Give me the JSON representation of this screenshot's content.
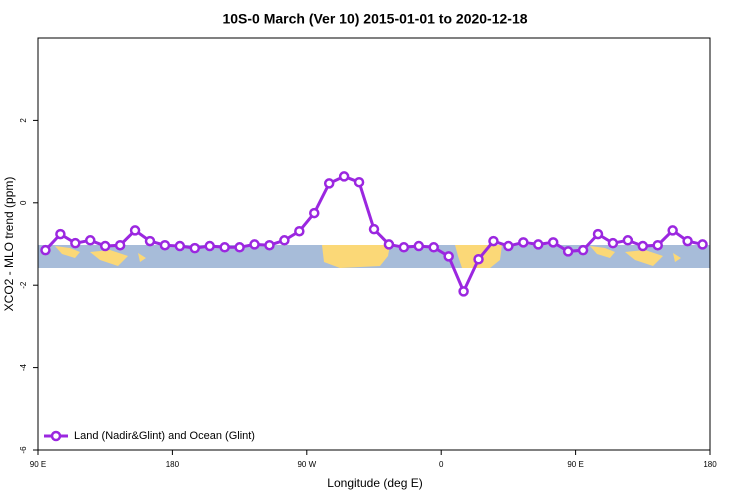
{
  "chart_data": {
    "type": "line",
    "title": "10S-0 March (Ver 10)   2015-01-01 to 2020-12-18",
    "x_label": "Longitude (deg E)",
    "y_label": "XCO2 - MLO trend (ppm)",
    "xlim": [
      90,
      540
    ],
    "ylim": [
      -6,
      4
    ],
    "xticks": [
      {
        "value": 90,
        "label": "90 E"
      },
      180,
      {
        "value": 270,
        "label": "90 W"
      },
      {
        "value": 360,
        "label": "0"
      },
      {
        "value": 450,
        "label": "90 E"
      },
      {
        "value": 540,
        "label": "180"
      }
    ],
    "yticks": [
      -6,
      -4,
      -2,
      0,
      2
    ],
    "legend": "bottom-left",
    "series": [
      {
        "name": "Land (Nadir&Glint) and Ocean (Glint)",
        "color": "#9b27e0",
        "x": [
          95,
          105,
          115,
          125,
          135,
          145,
          155,
          165,
          175,
          185,
          195,
          205,
          215,
          225,
          235,
          245,
          255,
          265,
          275,
          285,
          295,
          305,
          315,
          325,
          335,
          345,
          355,
          365,
          375,
          385,
          395,
          405,
          415,
          425,
          435,
          445,
          455,
          465,
          475,
          485,
          495,
          505,
          515,
          525,
          535
        ],
        "values": [
          -1.15,
          -0.76,
          -0.98,
          -0.91,
          -1.05,
          -1.03,
          -0.67,
          -0.93,
          -1.03,
          -1.05,
          -1.1,
          -1.05,
          -1.08,
          -1.08,
          -1.01,
          -1.03,
          -0.91,
          -0.69,
          -0.25,
          0.47,
          0.64,
          0.5,
          -0.64,
          -1.01,
          -1.08,
          -1.05,
          -1.08,
          -1.3,
          -2.15,
          -1.37,
          -0.93,
          -1.05,
          -0.96,
          -1.01,
          -0.96,
          -1.18,
          -1.15,
          -0.76,
          -0.98,
          -0.91,
          -1.05,
          -1.03,
          -0.67,
          -0.93,
          -1.01
        ]
      }
    ]
  }
}
